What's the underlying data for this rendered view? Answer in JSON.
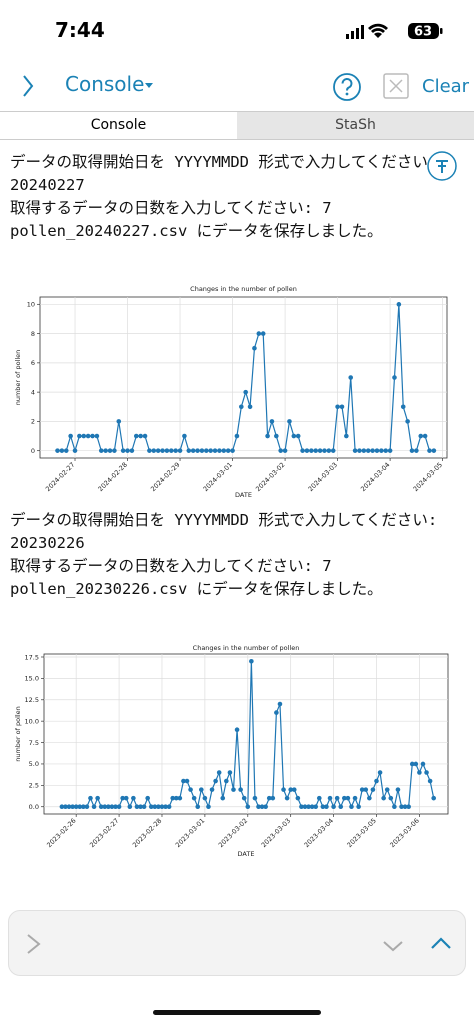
{
  "status_bar": {
    "time": "7:44",
    "battery": "63"
  },
  "toolbar": {
    "title": "Console",
    "clear": "Clear"
  },
  "tabs": [
    "Console",
    "StaSh"
  ],
  "console_blocks": [
    {
      "lines": [
        "データの取得開始日を YYYYMMDD 形式で入力してください: 20240227",
        "取得するデータの日数を入力してください: 7",
        "pollen_20240227.csv にデータを保存しました。"
      ]
    },
    {
      "lines": [
        "データの取得開始日を YYYYMMDD 形式で入力してください: 20230226",
        "取得するデータの日数を入力してください: 7",
        "pollen_20230226.csv にデータを保存しました。"
      ]
    }
  ],
  "chart_data": [
    {
      "type": "line",
      "title": "Changes in the number of pollen",
      "x_label": "DATE",
      "y_label": "number of pollen",
      "grid": true,
      "x": [
        -8,
        -6,
        -4,
        -2,
        0,
        2,
        4,
        6,
        8,
        10,
        12,
        14,
        16,
        18,
        20,
        22,
        24,
        26,
        28,
        30,
        32,
        34,
        36,
        38,
        40,
        42,
        44,
        46,
        48,
        50,
        52,
        54,
        56,
        58,
        60,
        62,
        64,
        66,
        68,
        70,
        72,
        74,
        76,
        78,
        80,
        82,
        84,
        86,
        88,
        90,
        92,
        94,
        96,
        98,
        100,
        102,
        104,
        106,
        108,
        110,
        112,
        114,
        116,
        118,
        120,
        122,
        124,
        126,
        128,
        130,
        132,
        134,
        136,
        138,
        140,
        142,
        144,
        146,
        148,
        150,
        152,
        154,
        156,
        158,
        160,
        162,
        164
      ],
      "series": [
        {
          "color": "#1f77b4",
          "values": [
            0,
            0,
            0,
            1,
            0,
            1,
            1,
            1,
            1,
            1,
            0,
            0,
            0,
            0,
            2,
            0,
            0,
            0,
            1,
            1,
            1,
            0,
            0,
            0,
            0,
            0,
            0,
            0,
            0,
            1,
            0,
            0,
            0,
            0,
            0,
            0,
            0,
            0,
            0,
            0,
            0,
            1,
            3,
            4,
            3,
            7,
            8,
            8,
            1,
            2,
            1,
            0,
            0,
            2,
            1,
            1,
            0,
            0,
            0,
            0,
            0,
            0,
            0,
            0,
            3,
            3,
            1,
            5,
            0,
            0,
            0,
            0,
            0,
            0,
            0,
            0,
            0,
            5,
            10,
            3,
            2,
            0,
            0,
            1,
            1,
            0,
            0
          ]
        }
      ],
      "xlim": [
        -16,
        170
      ],
      "ylim": [
        -0.5,
        10.5
      ],
      "xticks": [
        {
          "value": 0,
          "label": "2024-02-27"
        },
        {
          "value": 24,
          "label": "2024-02-28"
        },
        {
          "value": 48,
          "label": "2024-02-29"
        },
        {
          "value": 72,
          "label": "2024-03-01"
        },
        {
          "value": 96,
          "label": "2024-03-02"
        },
        {
          "value": 120,
          "label": "2024-03-03"
        },
        {
          "value": 144,
          "label": "2024-03-04"
        },
        {
          "value": 168,
          "label": "2024-03-05"
        }
      ],
      "yticks": [
        0,
        2,
        4,
        6,
        8,
        10
      ]
    },
    {
      "type": "line",
      "title": "Changes in the number of pollen",
      "x_label": "DATE",
      "y_label": "number of pollen",
      "grid": true,
      "x": [
        -8,
        -6,
        -4,
        -2,
        0,
        2,
        4,
        6,
        8,
        10,
        12,
        14,
        16,
        18,
        20,
        22,
        24,
        26,
        28,
        30,
        32,
        34,
        36,
        38,
        40,
        42,
        44,
        46,
        48,
        50,
        52,
        54,
        56,
        58,
        60,
        62,
        64,
        66,
        68,
        70,
        72,
        74,
        76,
        78,
        80,
        82,
        84,
        86,
        88,
        90,
        92,
        94,
        96,
        98,
        100,
        102,
        104,
        106,
        108,
        110,
        112,
        114,
        116,
        118,
        120,
        122,
        124,
        126,
        128,
        130,
        132,
        134,
        136,
        138,
        140,
        142,
        144,
        146,
        148,
        150,
        152,
        154,
        156,
        158,
        160,
        162,
        164,
        166,
        168,
        170,
        172,
        174,
        176,
        178,
        180,
        182,
        184,
        186,
        188,
        190,
        192,
        194,
        196,
        198,
        200
      ],
      "series": [
        {
          "color": "#1f77b4",
          "values": [
            0,
            0,
            0,
            0,
            0,
            0,
            0,
            0,
            1,
            0,
            1,
            0,
            0,
            0,
            0,
            0,
            0,
            1,
            1,
            0,
            1,
            0,
            0,
            0,
            1,
            0,
            0,
            0,
            0,
            0,
            0,
            1,
            1,
            1,
            3,
            3,
            2,
            1,
            0,
            2,
            1,
            0,
            2,
            3,
            4,
            1,
            3,
            4,
            2,
            9,
            2,
            1,
            0,
            17,
            1,
            0,
            0,
            0,
            1,
            1,
            11,
            12,
            2,
            1,
            2,
            2,
            1,
            0,
            0,
            0,
            0,
            0,
            1,
            0,
            0,
            1,
            0,
            1,
            0,
            1,
            1,
            0,
            1,
            0,
            2,
            2,
            1,
            2,
            3,
            4,
            1,
            2,
            1,
            0,
            2,
            0,
            0,
            0,
            5,
            5,
            4,
            5,
            4,
            3,
            1
          ]
        }
      ],
      "xlim": [
        -18,
        208
      ],
      "ylim": [
        -0.85,
        17.85
      ],
      "xticks": [
        {
          "value": 0,
          "label": "2023-02-26"
        },
        {
          "value": 24,
          "label": "2023-02-27"
        },
        {
          "value": 48,
          "label": "2023-02-28"
        },
        {
          "value": 72,
          "label": "2023-03-01"
        },
        {
          "value": 96,
          "label": "2023-03-02"
        },
        {
          "value": 120,
          "label": "2023-03-03"
        },
        {
          "value": 144,
          "label": "2023-03-04"
        },
        {
          "value": 168,
          "label": "2023-03-05"
        },
        {
          "value": 192,
          "label": "2023-03-06"
        }
      ],
      "yticks": [
        {
          "value": 0,
          "label": "0.0"
        },
        {
          "value": 2.5,
          "label": "2.5"
        },
        {
          "value": 5,
          "label": "5.0"
        },
        {
          "value": 7.5,
          "label": "7.5"
        },
        {
          "value": 10,
          "label": "10.0"
        },
        {
          "value": 12.5,
          "label": "12.5"
        },
        {
          "value": 15,
          "label": "15.0"
        },
        {
          "value": 17.5,
          "label": "17.5"
        }
      ]
    }
  ]
}
